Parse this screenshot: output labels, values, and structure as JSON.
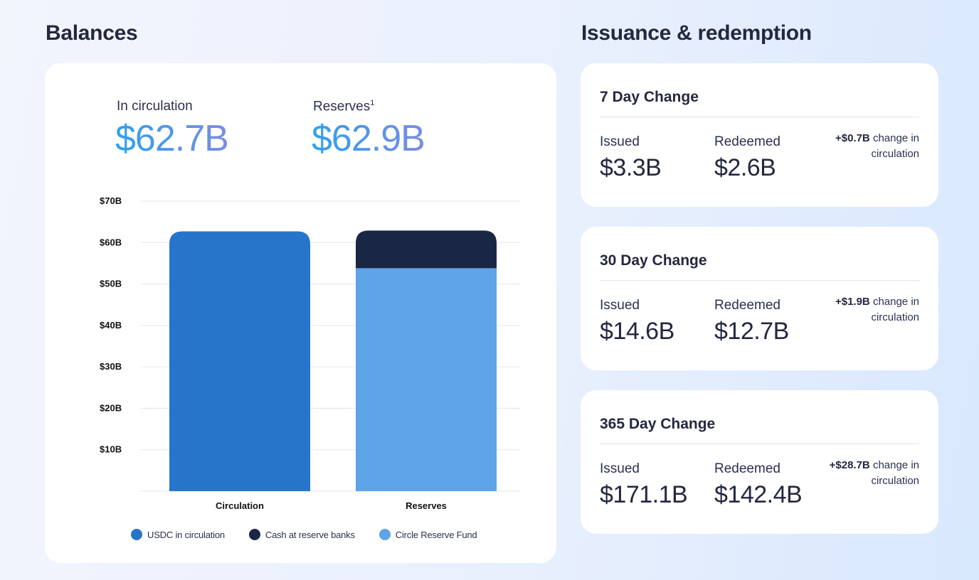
{
  "balances": {
    "title": "Balances",
    "in_circulation_label": "In circulation",
    "in_circulation_value": "$62.7B",
    "reserves_label": "Reserves",
    "reserves_footnote": "1",
    "reserves_value": "$62.9B"
  },
  "chart_data": {
    "type": "bar",
    "stacked": true,
    "categories": [
      "Circulation",
      "Reserves"
    ],
    "series": [
      {
        "name": "USDC in circulation",
        "color": "#2775ca",
        "values": [
          62.7,
          0
        ]
      },
      {
        "name": "Cash at reserve banks",
        "color": "#1a2744",
        "values": [
          0,
          9.1
        ]
      },
      {
        "name": "Circle Reserve Fund",
        "color": "#5fa3e8",
        "values": [
          0,
          53.8
        ]
      }
    ],
    "y_ticks": [
      "$10B",
      "$20B",
      "$30B",
      "$40B",
      "$50B",
      "$60B",
      "$70B"
    ],
    "y_tick_values": [
      10,
      20,
      30,
      40,
      50,
      60,
      70
    ],
    "ylim": [
      0,
      70
    ],
    "grid": true,
    "legend_position": "bottom"
  },
  "issuance": {
    "title": "Issuance & redemption",
    "cards": [
      {
        "title": "7 Day Change",
        "issued_label": "Issued",
        "issued_value": "$3.3B",
        "redeemed_label": "Redeemed",
        "redeemed_value": "$2.6B",
        "change_amount": "+$0.7B",
        "change_text": "change in circulation"
      },
      {
        "title": "30 Day Change",
        "issued_label": "Issued",
        "issued_value": "$14.6B",
        "redeemed_label": "Redeemed",
        "redeemed_value": "$12.7B",
        "change_amount": "+$1.9B",
        "change_text": "change in circulation"
      },
      {
        "title": "365 Day Change",
        "issued_label": "Issued",
        "issued_value": "$171.1B",
        "redeemed_label": "Redeemed",
        "redeemed_value": "$142.4B",
        "change_amount": "+$28.7B",
        "change_text": "change in circulation"
      }
    ]
  }
}
